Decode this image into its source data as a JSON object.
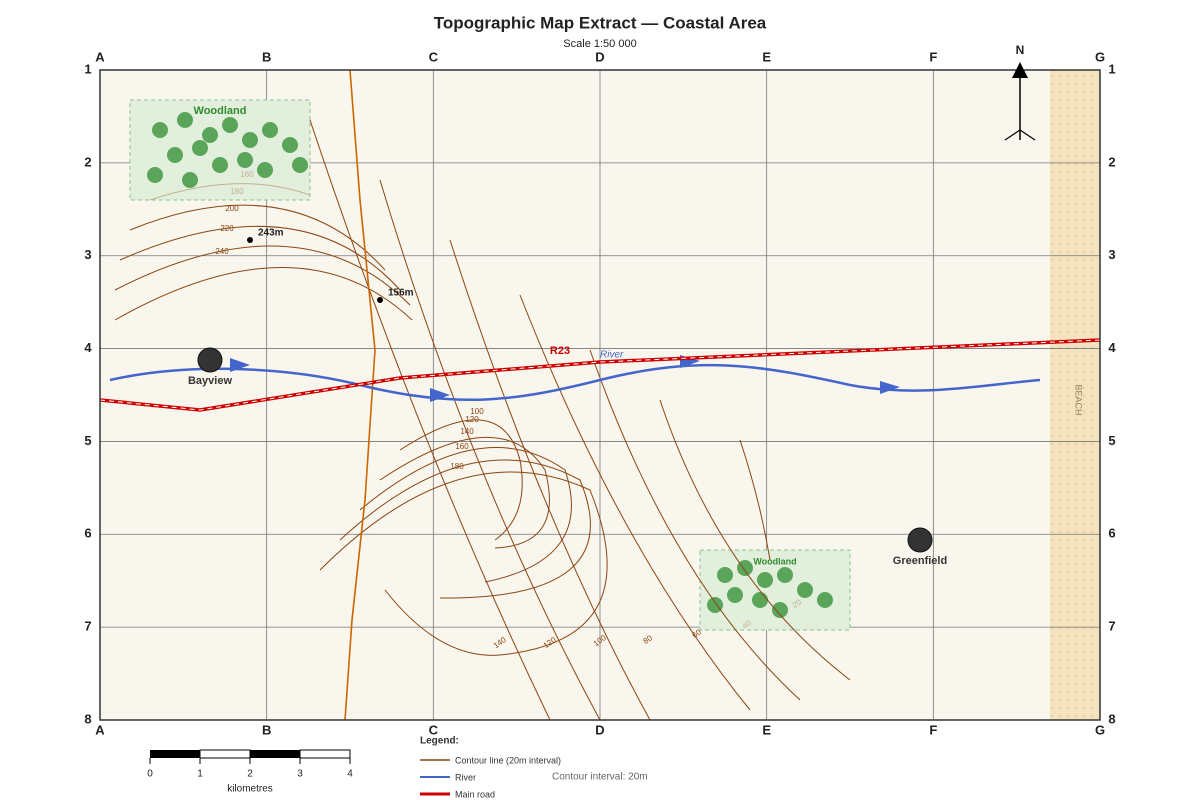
{
  "title": "Topographic Map Extract — Coastal Area",
  "subtitle": "Scale 1:50 000",
  "grid": {
    "columns": [
      "A",
      "B",
      "C",
      "D",
      "E",
      "F",
      "G"
    ],
    "rows": [
      "1",
      "2",
      "3",
      "4",
      "5",
      "6",
      "7",
      "8"
    ]
  },
  "north": "N",
  "places": [
    "Bayview",
    "Greenfield"
  ],
  "woodlands": [
    "Woodland",
    "Woodland"
  ],
  "spot_heights": [
    "243m",
    "156m"
  ],
  "road_label": "R23",
  "river_label": "River",
  "beach_label": "BEACH",
  "contour_labels": {
    "north_hill": [
      "160",
      "180",
      "200",
      "220",
      "240"
    ],
    "south_hill": [
      "100",
      "120",
      "140",
      "160",
      "180"
    ],
    "slope": [
      "140",
      "120",
      "100",
      "80",
      "60",
      "40",
      "20"
    ]
  },
  "scale_bar": {
    "ticks": [
      "0",
      "1",
      "2",
      "3",
      "4"
    ],
    "unit": "kilometres"
  },
  "legend": {
    "title": "Legend:",
    "items": [
      "Contour line (20m interval)",
      "River",
      "Main road"
    ]
  },
  "contour_interval": "Contour interval: 20m"
}
